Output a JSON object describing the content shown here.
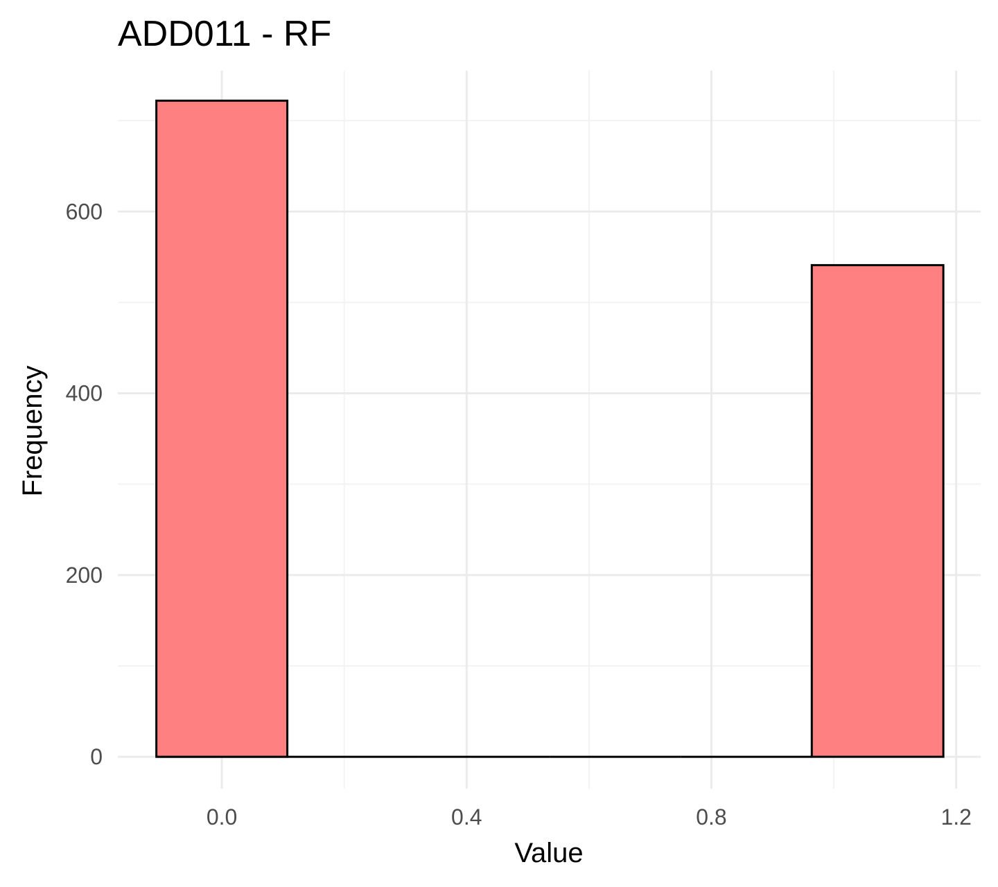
{
  "chart_data": {
    "type": "bar",
    "title": "ADD011 - RF",
    "xlabel": "Value",
    "ylabel": "Frequency",
    "xlim": [
      -0.17,
      1.24
    ],
    "ylim": [
      -35,
      755
    ],
    "x_ticks": [
      0.0,
      0.4,
      0.8,
      1.2
    ],
    "x_tick_labels": [
      "0.0",
      "0.4",
      "0.8",
      "1.2"
    ],
    "x_minor_ticks": [
      0.2,
      0.6,
      1.0
    ],
    "y_ticks": [
      0,
      200,
      400,
      600
    ],
    "y_tick_labels": [
      "0",
      "200",
      "400",
      "600"
    ],
    "y_minor_ticks": [
      100,
      300,
      500,
      700
    ],
    "grid": true,
    "bin_width": 0.214,
    "bars": [
      {
        "x0": -0.107,
        "x1": 0.107,
        "value": 0
      },
      {
        "x0": 0.107,
        "x1": 0.321,
        "value": 0
      },
      {
        "x0": 0.321,
        "x1": 0.536,
        "value": 0
      },
      {
        "x0": 0.536,
        "x1": 0.75,
        "value": 0
      },
      {
        "x0": 0.75,
        "x1": 0.964,
        "value": 0
      },
      {
        "x0": -0.107,
        "x1": 0.107,
        "value": 722
      },
      {
        "x0": 0.964,
        "x1": 1.179,
        "value": 541
      }
    ],
    "colors": {
      "bar_fill": "#ff8080",
      "bar_stroke": "#000000",
      "grid_major": "#ebebeb",
      "grid_minor": "#f3f3f3"
    }
  }
}
